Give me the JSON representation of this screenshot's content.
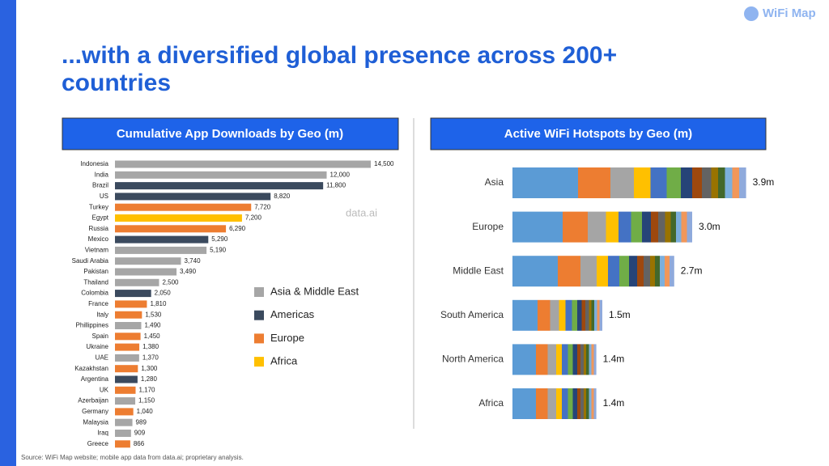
{
  "title": "...with a diversified global presence across 200+ countries",
  "logo": "WiFi Map",
  "watermark": "data.ai",
  "source": "Source: WiFi Map website; mobile app data from data.ai; proprietary analysis.",
  "chart_data": [
    {
      "type": "bar",
      "orientation": "horizontal",
      "title": "Cumulative App Downloads by Geo (m)",
      "categories": [
        "Indonesia",
        "India",
        "Brazil",
        "US",
        "Turkey",
        "Egypt",
        "Russia",
        "Mexico",
        "Vietnam",
        "Saudi Arabia",
        "Pakistan",
        "Thailand",
        "Colombia",
        "France",
        "Italy",
        "Phillippines",
        "Spain",
        "Ukraine",
        "UAE",
        "Kazakhstan",
        "Argentina",
        "UK",
        "Azerbaijan",
        "Germany",
        "Malaysia",
        "Iraq",
        "Greece"
      ],
      "values": [
        14500,
        12000,
        11800,
        8820,
        7720,
        7200,
        6290,
        5290,
        5190,
        3740,
        3490,
        2500,
        2050,
        1810,
        1530,
        1490,
        1450,
        1380,
        1370,
        1300,
        1280,
        1170,
        1150,
        1040,
        989,
        909,
        866
      ],
      "value_labels": [
        "14,500",
        "12,000",
        "11,800",
        "8,820",
        "7,720",
        "7,200",
        "6,290",
        "5,290",
        "5,190",
        "3,740",
        "3,490",
        "2,500",
        "2,050",
        "1,810",
        "1,530",
        "1,490",
        "1,450",
        "1,380",
        "1,370",
        "1,300",
        "1,280",
        "1,170",
        "1,150",
        "1,040",
        "989",
        "909",
        "866"
      ],
      "colors": [
        "#a6a6a6",
        "#a6a6a6",
        "#3b4a5e",
        "#3b4a5e",
        "#ed7d31",
        "#ffc000",
        "#ed7d31",
        "#3b4a5e",
        "#a6a6a6",
        "#a6a6a6",
        "#a6a6a6",
        "#a6a6a6",
        "#3b4a5e",
        "#ed7d31",
        "#ed7d31",
        "#a6a6a6",
        "#ed7d31",
        "#ed7d31",
        "#a6a6a6",
        "#ed7d31",
        "#3b4a5e",
        "#ed7d31",
        "#a6a6a6",
        "#ed7d31",
        "#a6a6a6",
        "#a6a6a6",
        "#ed7d31"
      ],
      "legend": [
        {
          "name": "Asia & Middle East",
          "color": "#a6a6a6"
        },
        {
          "name": "Americas",
          "color": "#3b4a5e"
        },
        {
          "name": "Europe",
          "color": "#ed7d31"
        },
        {
          "name": "Africa",
          "color": "#ffc000"
        }
      ]
    },
    {
      "type": "bar",
      "orientation": "horizontal",
      "title": "Active WiFi Hotspots by Geo (m)",
      "categories": [
        "Asia",
        "Europe",
        "Middle East",
        "South America",
        "North America",
        "Africa"
      ],
      "values": [
        3.9,
        3.0,
        2.7,
        1.5,
        1.4,
        1.4
      ],
      "value_labels": [
        "3.9m",
        "3.0m",
        "2.7m",
        "1.5m",
        "1.4m",
        "1.4m"
      ]
    }
  ]
}
